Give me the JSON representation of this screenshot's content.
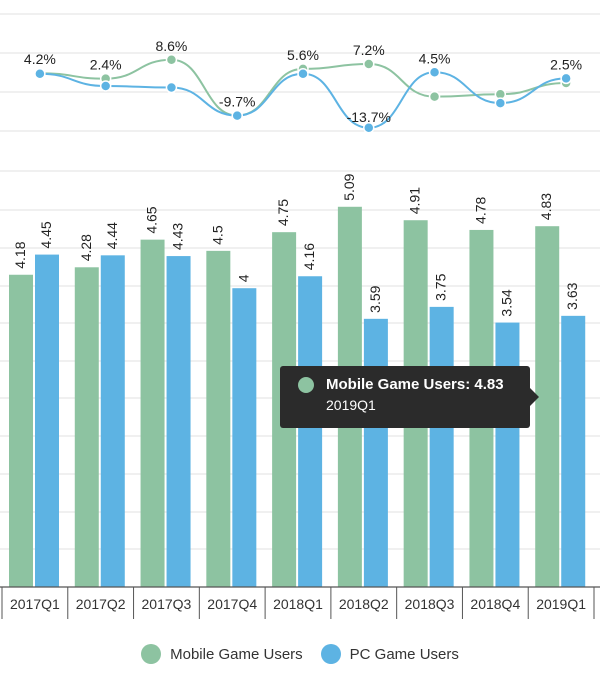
{
  "chart_data": {
    "type": "bar",
    "categories": [
      "2017Q1",
      "2017Q2",
      "2017Q3",
      "2017Q4",
      "2018Q1",
      "2018Q2",
      "2018Q3",
      "2018Q4",
      "2019Q1"
    ],
    "series": [
      {
        "name": "Mobile Game Users",
        "values": [
          4.18,
          4.28,
          4.65,
          4.5,
          4.75,
          5.09,
          4.91,
          4.78,
          4.83
        ],
        "color": "#8dc3a1"
      },
      {
        "name": "PC Game Users",
        "values": [
          4.45,
          4.44,
          4.43,
          4.0,
          4.16,
          3.59,
          3.75,
          3.54,
          3.63
        ],
        "color": "#5db3e3"
      }
    ],
    "growth_lines": [
      {
        "series": "Mobile Game Users",
        "values": [
          4.2,
          2.4,
          8.6,
          -9.7,
          5.6,
          7.2,
          -3.5,
          -2.7,
          1.0
        ],
        "color": "#8dc3a1"
      },
      {
        "series": "PC Game Users",
        "values": [
          4.0,
          0.0,
          -0.5,
          -9.7,
          4.0,
          -13.7,
          4.5,
          -5.6,
          2.5
        ],
        "color": "#5db3e3"
      }
    ],
    "growth_labels": [
      {
        "text": "4.2%",
        "index": 0
      },
      {
        "text": "2.4%",
        "index": 1
      },
      {
        "text": "8.6%",
        "index": 2
      },
      {
        "text": "-9.7%",
        "index": 3
      },
      {
        "text": "5.6%",
        "index": 4
      },
      {
        "text": "7.2%",
        "index": 5
      },
      {
        "text": "-13.7%",
        "index": 5
      },
      {
        "text": "4.5%",
        "index": 6
      },
      {
        "text": "2.5%",
        "index": 8
      }
    ],
    "grid": true,
    "legend_position": "bottom-center"
  },
  "tooltip": {
    "title": "Mobile Game Users: 4.83",
    "subtitle": "2019Q1",
    "color": "#8dc3a1"
  },
  "legend": {
    "items": [
      {
        "label": "Mobile Game Users",
        "color": "#8dc3a1"
      },
      {
        "label": "PC Game Users",
        "color": "#5db3e3"
      }
    ]
  }
}
